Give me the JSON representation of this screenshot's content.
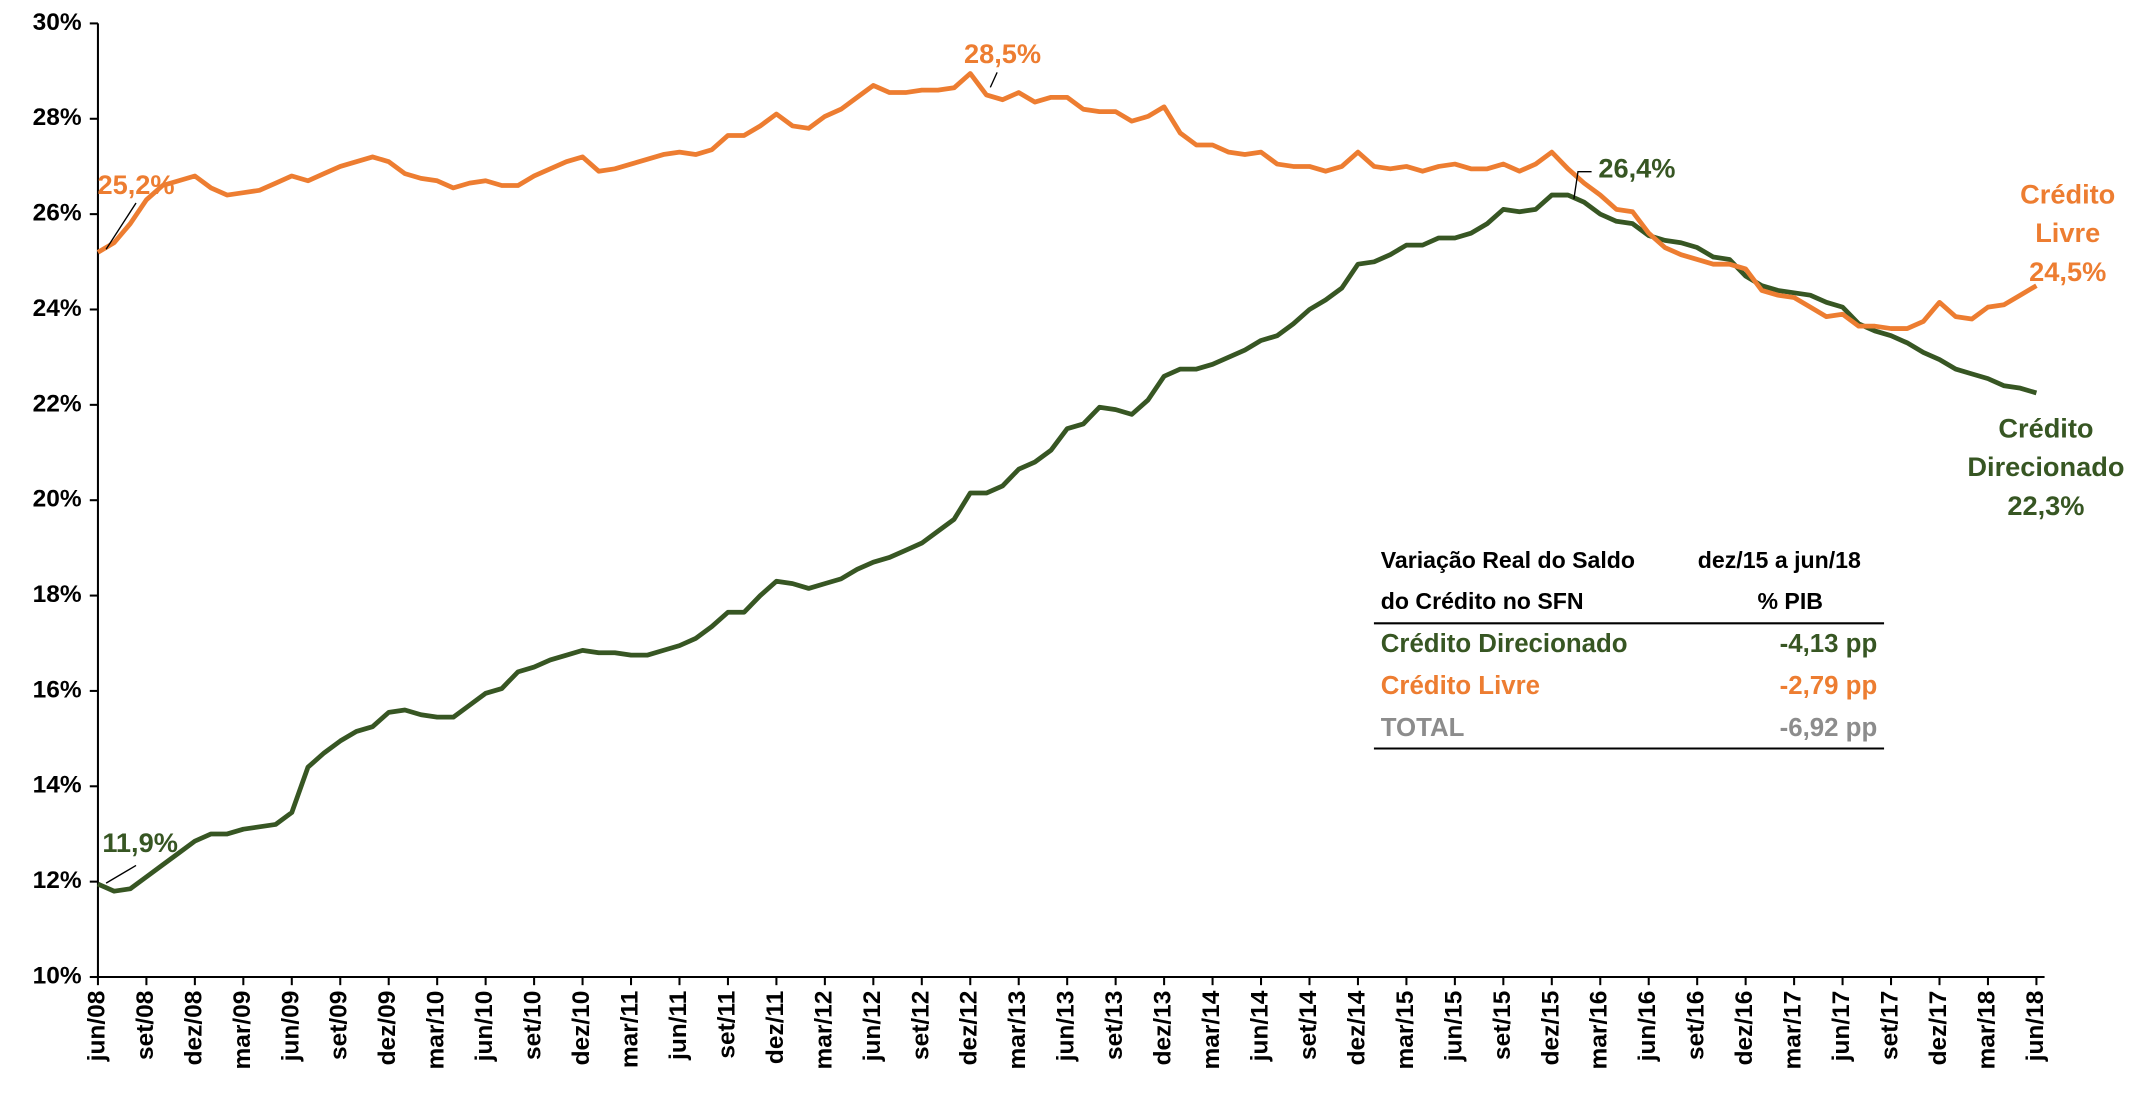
{
  "chart_data": {
    "type": "line",
    "categories": [
      "jun/08",
      null,
      null,
      "set/08",
      null,
      null,
      "dez/08",
      null,
      null,
      "mar/09",
      null,
      null,
      "jun/09",
      null,
      null,
      "set/09",
      null,
      null,
      "dez/09",
      null,
      null,
      "mar/10",
      null,
      null,
      "jun/10",
      null,
      null,
      "set/10",
      null,
      null,
      "dez/10",
      null,
      null,
      "mar/11",
      null,
      null,
      "jun/11",
      null,
      null,
      "set/11",
      null,
      null,
      "dez/11",
      null,
      null,
      "mar/12",
      null,
      null,
      "jun/12",
      null,
      null,
      "set/12",
      null,
      null,
      "dez/12",
      null,
      null,
      "mar/13",
      null,
      null,
      "jun/13",
      null,
      null,
      "set/13",
      null,
      null,
      "dez/13",
      null,
      null,
      "mar/14",
      null,
      null,
      "jun/14",
      null,
      null,
      "set/14",
      null,
      null,
      "dez/14",
      null,
      null,
      "mar/15",
      null,
      null,
      "jun/15",
      null,
      null,
      "set/15",
      null,
      null,
      "dez/15",
      null,
      null,
      "mar/16",
      null,
      null,
      "jun/16",
      null,
      null,
      "set/16",
      null,
      null,
      "dez/16",
      null,
      null,
      "mar/17",
      null,
      null,
      "jun/17",
      null,
      null,
      "set/17",
      null,
      null,
      "dez/17",
      null,
      null,
      "mar/18",
      null,
      null,
      "jun/18"
    ],
    "series": [
      {
        "name": "Crédito Direcionado",
        "color": "#375623",
        "values": [
          11.95,
          11.8,
          11.85,
          12.1,
          12.35,
          12.6,
          12.85,
          13.0,
          13.0,
          13.1,
          13.15,
          13.2,
          13.45,
          14.4,
          14.7,
          14.95,
          15.15,
          15.25,
          15.55,
          15.6,
          15.5,
          15.45,
          15.45,
          15.7,
          15.95,
          16.05,
          16.4,
          16.5,
          16.65,
          16.75,
          16.85,
          16.8,
          16.8,
          16.75,
          16.75,
          16.85,
          16.95,
          17.1,
          17.35,
          17.65,
          17.65,
          18.0,
          18.3,
          18.25,
          18.15,
          18.25,
          18.35,
          18.55,
          18.7,
          18.8,
          18.95,
          19.1,
          19.35,
          19.6,
          20.15,
          20.15,
          20.3,
          20.65,
          20.8,
          21.05,
          21.5,
          21.6,
          21.95,
          21.9,
          21.8,
          22.1,
          22.6,
          22.75,
          22.75,
          22.85,
          23.0,
          23.15,
          23.35,
          23.45,
          23.7,
          24.0,
          24.2,
          24.45,
          24.95,
          25.0,
          25.15,
          25.35,
          25.35,
          25.5,
          25.5,
          25.6,
          25.8,
          26.1,
          26.05,
          26.1,
          26.4,
          26.4,
          26.25,
          26.0,
          25.85,
          25.8,
          25.55,
          25.45,
          25.4,
          25.3,
          25.1,
          25.05,
          24.7,
          24.5,
          24.4,
          24.35,
          24.3,
          24.15,
          24.05,
          23.7,
          23.55,
          23.45,
          23.3,
          23.1,
          22.95,
          22.75,
          22.65,
          22.55,
          22.4,
          22.35,
          22.25
        ]
      },
      {
        "name": "Crédito Livre",
        "color": "#ED7D31",
        "values": [
          25.2,
          25.4,
          25.8,
          26.3,
          26.6,
          26.7,
          26.8,
          26.55,
          26.4,
          26.45,
          26.5,
          26.65,
          26.8,
          26.7,
          26.85,
          27.0,
          27.1,
          27.2,
          27.1,
          26.85,
          26.75,
          26.7,
          26.55,
          26.65,
          26.7,
          26.6,
          26.6,
          26.8,
          26.95,
          27.1,
          27.2,
          26.9,
          26.95,
          27.05,
          27.15,
          27.25,
          27.3,
          27.25,
          27.35,
          27.65,
          27.65,
          27.85,
          28.1,
          27.85,
          27.8,
          28.05,
          28.2,
          28.45,
          28.7,
          28.55,
          28.55,
          28.6,
          28.6,
          28.65,
          28.95,
          28.5,
          28.4,
          28.55,
          28.35,
          28.45,
          28.45,
          28.2,
          28.15,
          28.15,
          27.95,
          28.05,
          28.25,
          27.7,
          27.45,
          27.45,
          27.3,
          27.25,
          27.3,
          27.05,
          27.0,
          27.0,
          26.9,
          27.0,
          27.3,
          27.0,
          26.95,
          27.0,
          26.9,
          27.0,
          27.05,
          26.95,
          26.95,
          27.05,
          26.9,
          27.05,
          27.3,
          26.95,
          26.65,
          26.4,
          26.1,
          26.05,
          25.6,
          25.3,
          25.15,
          25.05,
          24.95,
          24.95,
          24.85,
          24.4,
          24.3,
          24.25,
          24.05,
          23.85,
          23.9,
          23.65,
          23.65,
          23.6,
          23.6,
          23.75,
          24.15,
          23.85,
          23.8,
          24.05,
          24.1,
          24.3,
          24.5
        ]
      }
    ],
    "ylim": [
      10,
      30
    ],
    "yticks": [
      {
        "value": 10,
        "label": "10%"
      },
      {
        "value": 12,
        "label": "12%"
      },
      {
        "value": 14,
        "label": "14%"
      },
      {
        "value": 16,
        "label": "16%"
      },
      {
        "value": 18,
        "label": "18%"
      },
      {
        "value": 20,
        "label": "20%"
      },
      {
        "value": 22,
        "label": "22%"
      },
      {
        "value": 24,
        "label": "24%"
      },
      {
        "value": 26,
        "label": "26%"
      },
      {
        "value": 28,
        "label": "28%"
      },
      {
        "value": 30,
        "label": "30%"
      }
    ],
    "grid": false,
    "annotations": [
      {
        "lines": [
          "25,2%"
        ],
        "color": "#ED7D31"
      },
      {
        "lines": [
          "11,9%"
        ],
        "color": "#375623"
      },
      {
        "lines": [
          "28,5%"
        ],
        "color": "#ED7D31"
      },
      {
        "lines": [
          "26,4%"
        ],
        "color": "#375623"
      },
      {
        "lines": [
          "Crédito",
          "Livre",
          "24,5%"
        ],
        "color": "#ED7D31"
      },
      {
        "lines": [
          "Crédito",
          "Direcionado",
          "22,3%"
        ],
        "color": "#375623"
      }
    ]
  },
  "table": {
    "header": [
      [
        "Variação Real do Saldo",
        "dez/15 a jun/18"
      ],
      [
        "do Crédito no SFN",
        "% PIB"
      ]
    ],
    "rows": [
      {
        "series": 0,
        "value": "-4,13 pp"
      },
      {
        "series": 1,
        "value": "-2,79 pp"
      },
      {
        "label": "TOTAL",
        "value": "-6,92 pp",
        "color": "#8C8C8C"
      }
    ]
  }
}
